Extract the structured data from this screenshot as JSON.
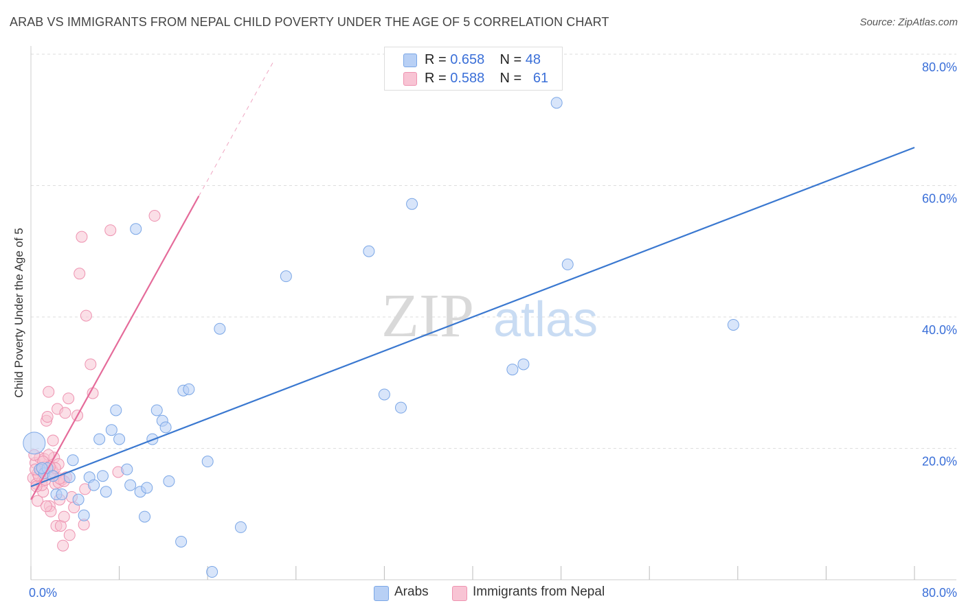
{
  "title": "ARAB VS IMMIGRANTS FROM NEPAL CHILD POVERTY UNDER THE AGE OF 5 CORRELATION CHART",
  "source": "Source: ZipAtlas.com",
  "watermark": {
    "zip": "ZIP",
    "atlas": "atlas"
  },
  "colors": {
    "arabs_fill": "#b8d0f5",
    "arabs_stroke": "#7aa6e6",
    "arabs_line": "#3a78d0",
    "nepal_fill": "#f8c4d4",
    "nepal_stroke": "#ee92b0",
    "nepal_line": "#e56b9a",
    "axis_label": "#3a6fd8",
    "grid": "#dddddd"
  },
  "legend": {
    "arabs": {
      "r_label": "R = ",
      "r": "0.658",
      "n_label": "N = ",
      "n": "48"
    },
    "nepal": {
      "r_label": "R = ",
      "r": "0.588",
      "n_label": "N = ",
      "n": "61"
    }
  },
  "chart_data": {
    "type": "scatter",
    "title": "ARAB VS IMMIGRANTS FROM NEPAL CHILD POVERTY UNDER THE AGE OF 5 CORRELATION CHART",
    "xlabel": "",
    "ylabel": "Child Poverty Under the Age of 5",
    "xlim": [
      0,
      80
    ],
    "ylim": [
      0,
      80
    ],
    "x_ticks": [
      "0.0%",
      "80.0%"
    ],
    "y_ticks": [
      "20.0%",
      "40.0%",
      "60.0%",
      "80.0%"
    ],
    "y_tick_values": [
      20,
      40,
      60,
      80
    ],
    "grid": true,
    "legend_position": "top-center",
    "series": [
      {
        "name": "Arabs",
        "points": [
          [
            0.3,
            20.8
          ],
          [
            0.8,
            16.8
          ],
          [
            1.2,
            16.2
          ],
          [
            1.5,
            17.0
          ],
          [
            2.0,
            15.8
          ],
          [
            2.3,
            13.0
          ],
          [
            2.8,
            13.0
          ],
          [
            3.5,
            15.6
          ],
          [
            3.8,
            18.2
          ],
          [
            4.3,
            12.2
          ],
          [
            4.8,
            9.8
          ],
          [
            5.3,
            15.6
          ],
          [
            5.7,
            14.4
          ],
          [
            6.2,
            21.4
          ],
          [
            6.5,
            15.8
          ],
          [
            6.8,
            13.4
          ],
          [
            7.3,
            22.8
          ],
          [
            7.7,
            25.8
          ],
          [
            8.0,
            21.4
          ],
          [
            8.7,
            16.8
          ],
          [
            9.0,
            14.4
          ],
          [
            9.5,
            53.4
          ],
          [
            9.9,
            13.4
          ],
          [
            10.3,
            9.6
          ],
          [
            10.5,
            14.0
          ],
          [
            11.0,
            21.4
          ],
          [
            11.4,
            25.8
          ],
          [
            11.9,
            24.2
          ],
          [
            12.2,
            23.2
          ],
          [
            12.5,
            15.0
          ],
          [
            13.6,
            5.8
          ],
          [
            13.8,
            28.8
          ],
          [
            14.3,
            29.0
          ],
          [
            16.0,
            18.0
          ],
          [
            16.4,
            1.2
          ],
          [
            17.1,
            38.2
          ],
          [
            19.0,
            8.0
          ],
          [
            23.1,
            46.2
          ],
          [
            30.6,
            50.0
          ],
          [
            32.0,
            28.2
          ],
          [
            33.5,
            26.2
          ],
          [
            34.5,
            57.2
          ],
          [
            43.6,
            32.0
          ],
          [
            44.6,
            32.8
          ],
          [
            47.6,
            72.6
          ],
          [
            48.6,
            48.0
          ],
          [
            63.6,
            38.8
          ],
          [
            1.0,
            17.0
          ]
        ],
        "trend": {
          "x": [
            0,
            80
          ],
          "y": [
            14.2,
            65.8
          ]
        }
      },
      {
        "name": "Immigrants from Nepal",
        "points": [
          [
            0.2,
            15.5
          ],
          [
            0.4,
            17.8
          ],
          [
            0.5,
            14.6
          ],
          [
            0.6,
            16.2
          ],
          [
            0.8,
            18.6
          ],
          [
            1.0,
            15.0
          ],
          [
            1.1,
            13.4
          ],
          [
            1.2,
            18.4
          ],
          [
            1.3,
            17.2
          ],
          [
            1.4,
            24.2
          ],
          [
            1.5,
            24.8
          ],
          [
            1.6,
            28.6
          ],
          [
            1.7,
            11.2
          ],
          [
            1.8,
            10.4
          ],
          [
            1.9,
            16.8
          ],
          [
            2.0,
            21.2
          ],
          [
            2.1,
            18.6
          ],
          [
            2.2,
            14.6
          ],
          [
            2.3,
            8.2
          ],
          [
            2.4,
            26.0
          ],
          [
            2.5,
            17.6
          ],
          [
            2.6,
            12.2
          ],
          [
            2.7,
            8.2
          ],
          [
            2.8,
            15.2
          ],
          [
            2.9,
            5.2
          ],
          [
            3.0,
            9.6
          ],
          [
            3.1,
            25.4
          ],
          [
            3.2,
            15.6
          ],
          [
            3.4,
            27.6
          ],
          [
            3.5,
            6.8
          ],
          [
            3.7,
            12.6
          ],
          [
            3.9,
            11.0
          ],
          [
            4.2,
            25.0
          ],
          [
            4.4,
            46.6
          ],
          [
            4.6,
            52.2
          ],
          [
            4.8,
            8.4
          ],
          [
            4.9,
            13.8
          ],
          [
            5.0,
            40.2
          ],
          [
            5.4,
            32.8
          ],
          [
            5.6,
            28.4
          ],
          [
            7.2,
            53.2
          ],
          [
            7.9,
            16.4
          ],
          [
            11.2,
            55.4
          ],
          [
            0.3,
            19.0
          ],
          [
            0.7,
            15.8
          ],
          [
            1.0,
            14.4
          ],
          [
            1.3,
            15.2
          ],
          [
            1.6,
            19.0
          ],
          [
            2.0,
            16.4
          ],
          [
            2.5,
            14.8
          ],
          [
            0.9,
            16.6
          ],
          [
            0.5,
            14.2
          ],
          [
            1.8,
            16.0
          ],
          [
            2.2,
            17.0
          ],
          [
            0.6,
            12.0
          ],
          [
            1.4,
            11.2
          ],
          [
            3.0,
            15.0
          ],
          [
            0.4,
            16.8
          ],
          [
            1.1,
            18.0
          ],
          [
            1.7,
            17.2
          ],
          [
            2.6,
            15.4
          ]
        ],
        "trend": {
          "x": [
            0,
            15.2
          ],
          "y": [
            12.2,
            58.4
          ]
        },
        "trend_dashed": {
          "x": [
            15.2,
            22
          ],
          "y": [
            58.4,
            79
          ]
        }
      }
    ]
  }
}
